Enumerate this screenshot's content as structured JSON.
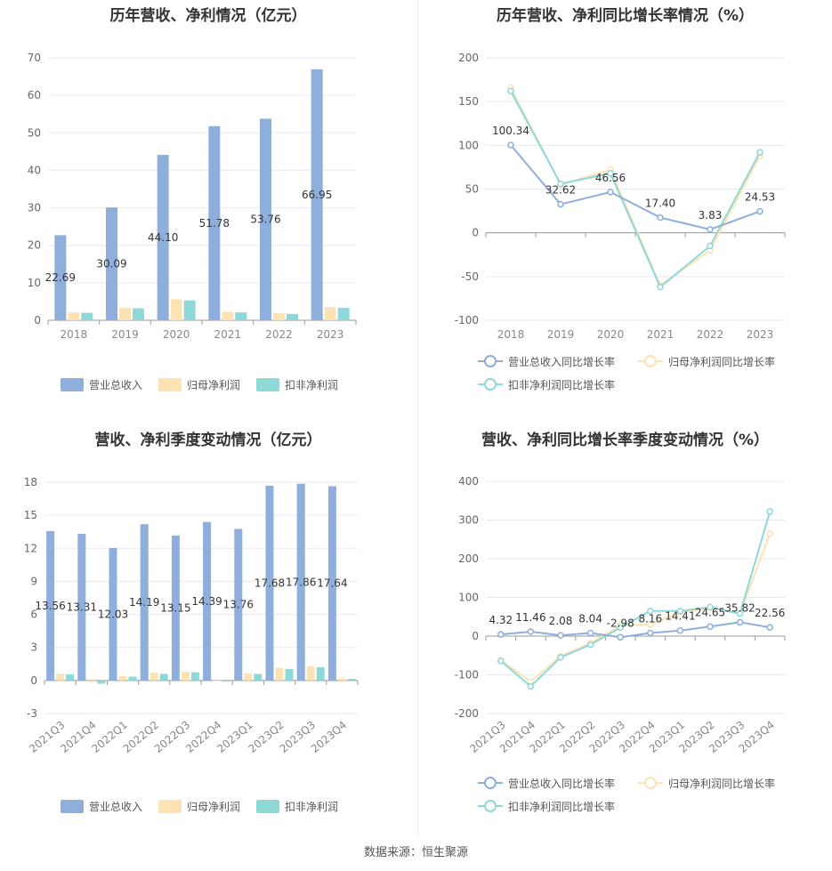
{
  "colors": {
    "revenue": "#8eaedc",
    "netprofit": "#fde3b4",
    "deducted": "#8fd8d8",
    "grid": "#e6e9f0",
    "axis": "#999",
    "text": "#666"
  },
  "footer": {
    "source": "数据来源：恒生聚源"
  },
  "chart_data": [
    {
      "id": "annual-bar",
      "type": "bar",
      "title": "历年营收、净利情况（亿元）",
      "categories": [
        "2018",
        "2019",
        "2020",
        "2021",
        "2022",
        "2023"
      ],
      "series": [
        {
          "name": "营业总收入",
          "values": [
            22.69,
            30.09,
            44.1,
            51.78,
            53.76,
            66.95
          ],
          "labels": [
            "22.69",
            "30.09",
            "44.10",
            "51.78",
            "53.76",
            "66.95"
          ]
        },
        {
          "name": "归母净利润",
          "values": [
            2.1,
            3.3,
            5.6,
            2.3,
            1.9,
            3.5
          ]
        },
        {
          "name": "扣非净利润",
          "values": [
            2.0,
            3.2,
            5.3,
            2.1,
            1.7,
            3.3
          ]
        }
      ],
      "ylim": [
        0,
        70
      ],
      "yticks": [
        "0",
        "10",
        "20",
        "30",
        "40",
        "50",
        "60",
        "70"
      ],
      "legend": "bottom"
    },
    {
      "id": "annual-line",
      "type": "line",
      "title": "历年营收、净利同比增长率情况（%）",
      "categories": [
        "2018",
        "2019",
        "2020",
        "2021",
        "2022",
        "2023"
      ],
      "series": [
        {
          "name": "营业总收入同比增长率",
          "values": [
            100.34,
            32.62,
            46.56,
            17.4,
            3.83,
            24.53
          ],
          "labels": [
            "100.34",
            "32.62",
            "46.56",
            "17.40",
            "3.83",
            "24.53"
          ]
        },
        {
          "name": "归母净利润同比增长率",
          "values": [
            166,
            55,
            72,
            -60,
            -20,
            88
          ]
        },
        {
          "name": "扣非净利润同比增长率",
          "values": [
            162,
            56,
            68,
            -62,
            -15,
            92
          ]
        }
      ],
      "ylim": [
        -100,
        200
      ],
      "yticks": [
        "-100",
        "-50",
        "0",
        "50",
        "100",
        "150",
        "200"
      ],
      "legend": "bottom"
    },
    {
      "id": "quarter-bar",
      "type": "bar",
      "title": "营收、净利季度变动情况（亿元）",
      "categories": [
        "2021Q3",
        "2021Q4",
        "2022Q1",
        "2022Q2",
        "2022Q3",
        "2022Q4",
        "2023Q1",
        "2023Q2",
        "2023Q3",
        "2023Q4"
      ],
      "series": [
        {
          "name": "营业总收入",
          "values": [
            13.56,
            13.31,
            12.03,
            14.19,
            13.15,
            14.39,
            13.76,
            17.68,
            17.86,
            17.64
          ],
          "labels": [
            "13.56",
            "13.31",
            "12.03",
            "14.19",
            "13.15",
            "14.39",
            "13.76",
            "17.68",
            "17.86",
            "17.64"
          ]
        },
        {
          "name": "归母净利润",
          "values": [
            0.6,
            -0.15,
            0.4,
            0.7,
            0.8,
            -0.05,
            0.65,
            1.15,
            1.3,
            0.2
          ]
        },
        {
          "name": "扣非净利润",
          "values": [
            0.55,
            -0.3,
            0.35,
            0.6,
            0.75,
            -0.1,
            0.6,
            1.05,
            1.2,
            0.15
          ]
        }
      ],
      "ylim": [
        -3,
        18
      ],
      "yticks": [
        "-3",
        "0",
        "3",
        "6",
        "9",
        "12",
        "15",
        "18"
      ],
      "legend": "bottom"
    },
    {
      "id": "quarter-line",
      "type": "line",
      "title": "营收、净利同比增长率季度变动情况（%）",
      "categories": [
        "2021Q3",
        "2021Q4",
        "2022Q1",
        "2022Q2",
        "2022Q3",
        "2022Q4",
        "2023Q1",
        "2023Q2",
        "2023Q3",
        "2023Q4"
      ],
      "series": [
        {
          "name": "营业总收入同比增长率",
          "values": [
            4.32,
            11.46,
            2.08,
            8.04,
            -2.98,
            8.16,
            14.41,
            24.65,
            35.82,
            22.56
          ],
          "labels": [
            "4.32",
            "11.46",
            "2.08",
            "8.04",
            "-2.98",
            "8.16",
            "14.41",
            "24.65",
            "35.82",
            "22.56"
          ]
        },
        {
          "name": "归母净利润同比增长率",
          "values": [
            -62,
            -118,
            -52,
            -18,
            28,
            30,
            62,
            72,
            58,
            265
          ]
        },
        {
          "name": "扣非净利润同比增长率",
          "values": [
            -64,
            -130,
            -55,
            -22,
            22,
            65,
            65,
            75,
            58,
            322
          ]
        }
      ],
      "ylim": [
        -200,
        400
      ],
      "yticks": [
        "-200",
        "-100",
        "0",
        "100",
        "200",
        "300",
        "400"
      ],
      "legend": "bottom"
    }
  ]
}
